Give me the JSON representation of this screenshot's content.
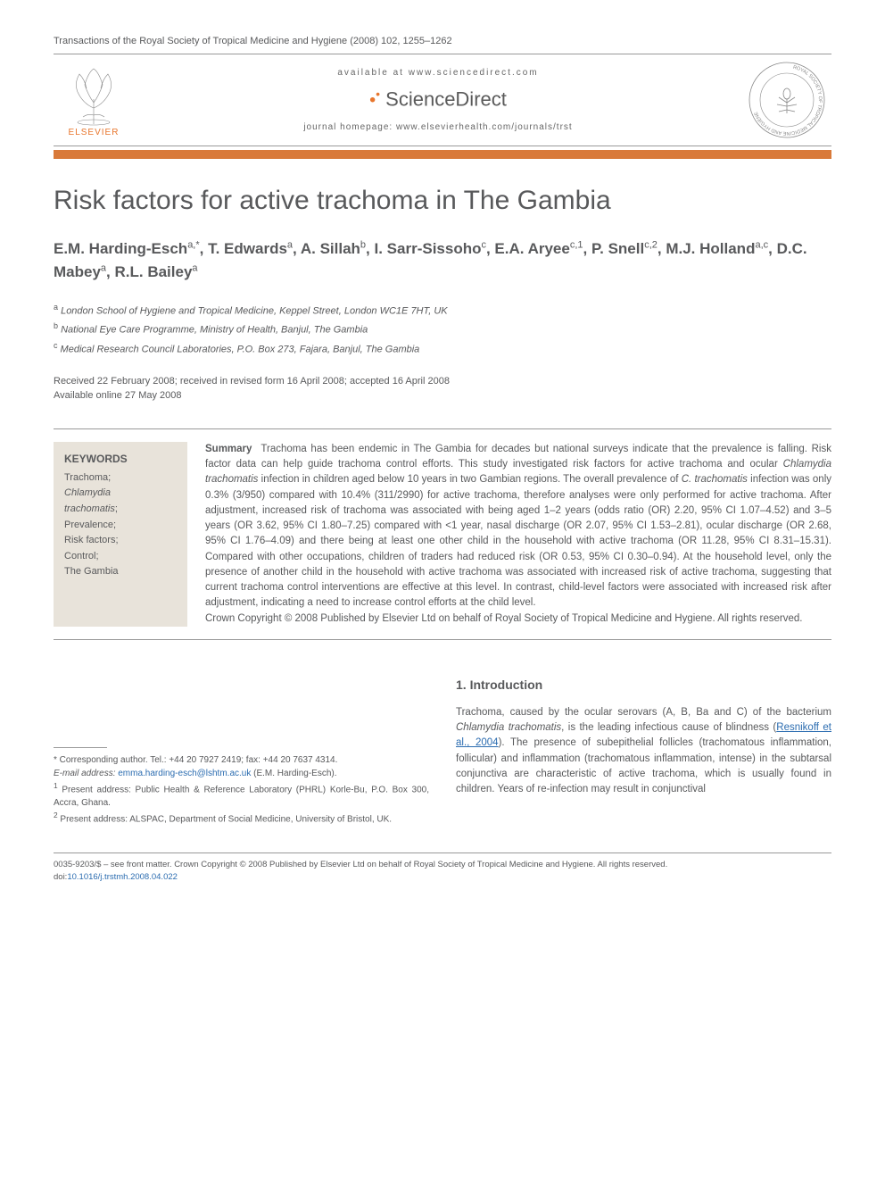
{
  "header": {
    "journal_ref": "Transactions of the Royal Society of Tropical Medicine and Hygiene (2008) 102, 1255–1262",
    "available_at": "available at www.sciencedirect.com",
    "sciencedirect": "ScienceDirect",
    "homepage": "journal homepage: www.elsevierhealth.com/journals/trst",
    "elsevier_label": "ELSEVIER"
  },
  "colors": {
    "orange_bar": "#d97a3a",
    "text_gray": "#58595b",
    "keywords_bg": "#e8e3da",
    "elsevier_orange": "#e8762d",
    "link_blue": "#2b6cb0"
  },
  "title": "Risk factors for active trachoma in The Gambia",
  "authors_html": "E.M. Harding-Esch<sup>a,*</sup>, T. Edwards<sup>a</sup>, A. Sillah<sup>b</sup>, I. Sarr-Sissoho<sup>c</sup>, E.A. Aryee<sup>c,1</sup>, P. Snell<sup>c,2</sup>, M.J. Holland<sup>a,c</sup>, D.C. Mabey<sup>a</sup>, R.L. Bailey<sup>a</sup>",
  "affiliations": [
    {
      "sup": "a",
      "text": "London School of Hygiene and Tropical Medicine, Keppel Street, London WC1E 7HT, UK"
    },
    {
      "sup": "b",
      "text": "National Eye Care Programme, Ministry of Health, Banjul, The Gambia"
    },
    {
      "sup": "c",
      "text": "Medical Research Council Laboratories, P.O. Box 273, Fajara, Banjul, The Gambia"
    }
  ],
  "dates": {
    "received": "Received 22 February 2008; received in revised form 16 April 2008; accepted 16 April 2008",
    "online": "Available online 27 May 2008"
  },
  "keywords": {
    "title": "KEYWORDS",
    "items": "Trachoma;\nChlamydia trachomatis;\nPrevalence;\nRisk factors;\nControl;\nThe Gambia"
  },
  "summary": {
    "label": "Summary",
    "text": "Trachoma has been endemic in The Gambia for decades but national surveys indicate that the prevalence is falling. Risk factor data can help guide trachoma control efforts. This study investigated risk factors for active trachoma and ocular Chlamydia trachomatis infection in children aged below 10 years in two Gambian regions. The overall prevalence of C. trachomatis infection was only 0.3% (3/950) compared with 10.4% (311/2990) for active trachoma, therefore analyses were only performed for active trachoma. After adjustment, increased risk of trachoma was associated with being aged 1–2 years (odds ratio (OR) 2.20, 95% CI 1.07–4.52) and 3–5 years (OR 3.62, 95% CI 1.80–7.25) compared with <1 year, nasal discharge (OR 2.07, 95% CI 1.53–2.81), ocular discharge (OR 2.68, 95% CI 1.76–4.09) and there being at least one other child in the household with active trachoma (OR 11.28, 95% CI 8.31–15.31). Compared with other occupations, children of traders had reduced risk (OR 0.53, 95% CI 0.30–0.94). At the household level, only the presence of another child in the household with active trachoma was associated with increased risk of active trachoma, suggesting that current trachoma control interventions are effective at this level. In contrast, child-level factors were associated with increased risk after adjustment, indicating a need to increase control efforts at the child level.",
    "copyright": "Crown Copyright © 2008 Published by Elsevier Ltd on behalf of Royal Society of Tropical Medicine and Hygiene. All rights reserved."
  },
  "footnotes": {
    "corresponding": "* Corresponding author. Tel.: +44 20 7927 2419; fax: +44 20 7637 4314.",
    "email_label": "E-mail address:",
    "email": "emma.harding-esch@lshtm.ac.uk",
    "email_who": "(E.M. Harding-Esch).",
    "n1": "1 Present address: Public Health & Reference Laboratory (PHRL) Korle-Bu, P.O. Box 300, Accra, Ghana.",
    "n2": "2 Present address: ALSPAC, Department of Social Medicine, University of Bristol, UK."
  },
  "intro": {
    "heading": "1. Introduction",
    "p1_a": "Trachoma, caused by the ocular serovars (A, B, Ba and C) of the bacterium ",
    "p1_em": "Chlamydia trachomatis",
    "p1_b": ", is the leading infectious cause of blindness (",
    "p1_ref": "Resnikoff et al., 2004",
    "p1_c": "). The presence of subepithelial follicles (trachomatous inflammation, follicular) and inflammation (trachomatous inflammation, intense) in the subtarsal conjunctiva are characteristic of active trachoma, which is usually found in children. Years of re-infection may result in conjunctival"
  },
  "footer": {
    "line1": "0035-9203/$ – see front matter. Crown Copyright © 2008 Published by Elsevier Ltd on behalf of Royal Society of Tropical Medicine and Hygiene. All rights reserved.",
    "doi_label": "doi:",
    "doi": "10.1016/j.trstmh.2008.04.022"
  }
}
